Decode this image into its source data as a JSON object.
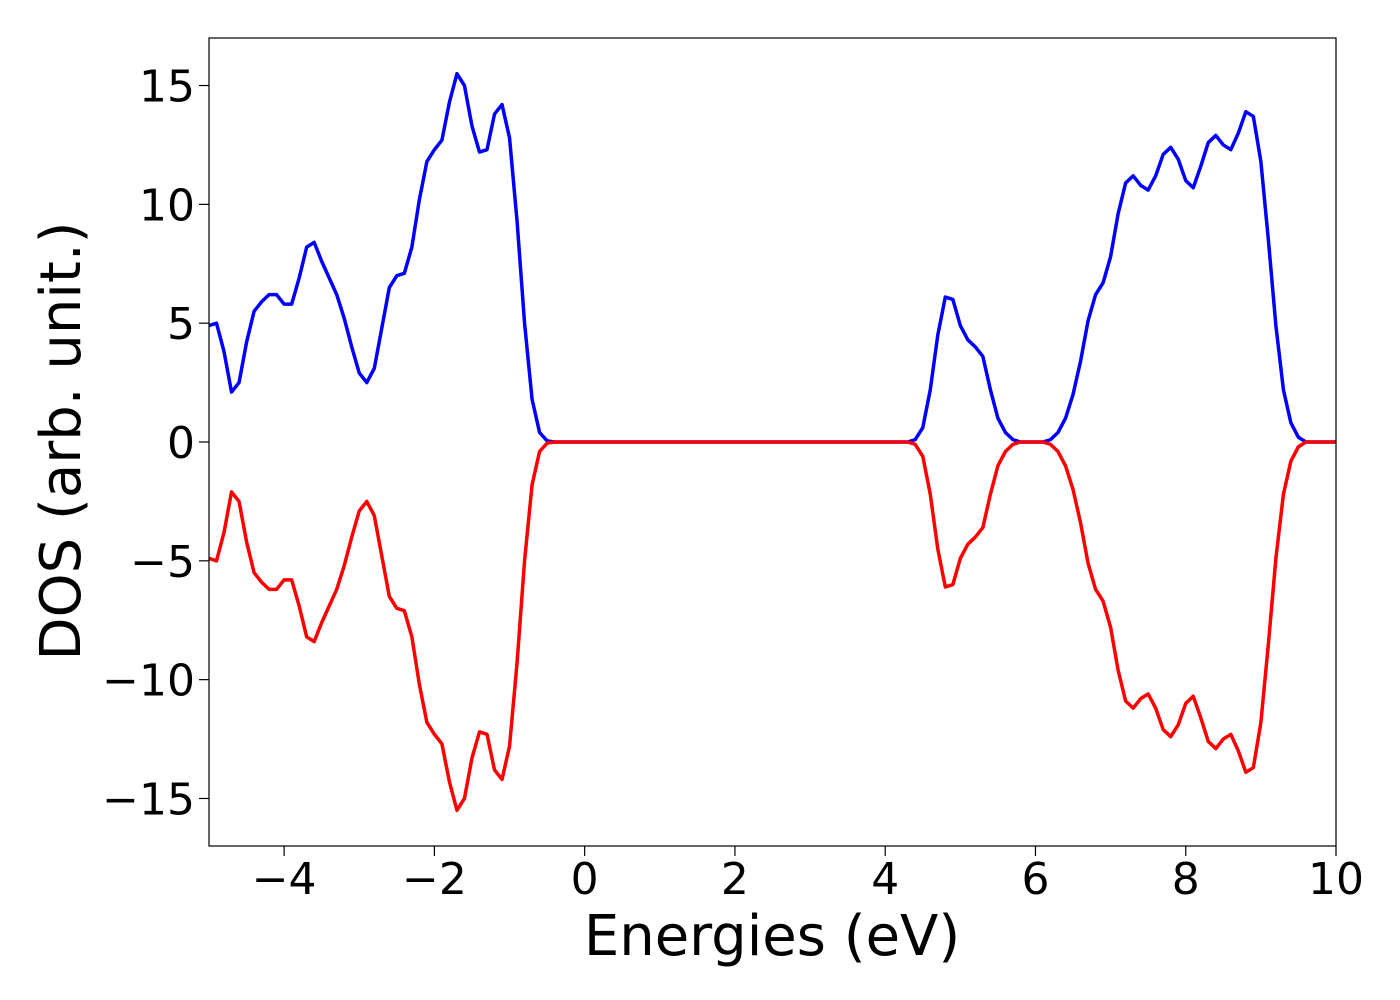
{
  "chart_data": {
    "type": "line",
    "xlabel": "Energies (eV)",
    "ylabel": "DOS (arb. unit.)",
    "xlim": [
      -5,
      10
    ],
    "ylim": [
      -17,
      17
    ],
    "xticks": [
      {
        "value": -4,
        "label": "−4"
      },
      {
        "value": -2,
        "label": "−2"
      },
      0,
      2,
      4,
      6,
      8,
      10
    ],
    "yticks": [
      {
        "value": -15,
        "label": "−15"
      },
      {
        "value": -10,
        "label": "−10"
      },
      {
        "value": -5,
        "label": "−5"
      },
      0,
      5,
      10,
      15
    ],
    "x": [
      -5,
      -4.9,
      -4.8,
      -4.7,
      -4.6,
      -4.5,
      -4.4,
      -4.3,
      -4.2,
      -4.1,
      -4,
      -3.9,
      -3.8,
      -3.7,
      -3.6,
      -3.5,
      -3.4,
      -3.3,
      -3.2,
      -3.1,
      -3,
      -2.9,
      -2.8,
      -2.7,
      -2.6,
      -2.5,
      -2.4,
      -2.3,
      -2.2,
      -2.1,
      -2,
      -1.9,
      -1.8,
      -1.7,
      -1.6,
      -1.5,
      -1.4,
      -1.3,
      -1.2,
      -1.1,
      -1,
      -0.9,
      -0.8,
      -0.7,
      -0.6,
      -0.5,
      -0.4,
      -0.3,
      -0.2,
      -0.1,
      0,
      0.1,
      0.2,
      0.3,
      0.4,
      0.5,
      0.6,
      0.7,
      0.8,
      0.9,
      1,
      1.1,
      1.2,
      1.3,
      1.4,
      1.5,
      1.6,
      1.7,
      1.8,
      1.9,
      2,
      2.1,
      2.2,
      2.3,
      2.4,
      2.5,
      2.6,
      2.7,
      2.8,
      2.9,
      3,
      3.1,
      3.2,
      3.3,
      3.4,
      3.5,
      3.6,
      3.7,
      3.8,
      3.9,
      4,
      4.1,
      4.2,
      4.3,
      4.4,
      4.5,
      4.6,
      4.7,
      4.8,
      4.9,
      5,
      5.1,
      5.2,
      5.3,
      5.4,
      5.5,
      5.6,
      5.7,
      5.8,
      5.9,
      6,
      6.1,
      6.2,
      6.3,
      6.4,
      6.5,
      6.6,
      6.7,
      6.8,
      6.9,
      7,
      7.1,
      7.2,
      7.3,
      7.4,
      7.5,
      7.6,
      7.7,
      7.8,
      7.9,
      8,
      8.1,
      8.2,
      8.3,
      8.4,
      8.5,
      8.6,
      8.7,
      8.8,
      8.9,
      9,
      9.1,
      9.2,
      9.3,
      9.4,
      9.5,
      9.6,
      9.7,
      9.8,
      9.9,
      10
    ],
    "series": [
      {
        "color": "#0000ff",
        "values": [
          4.9,
          5.0,
          3.8,
          2.1,
          2.5,
          4.2,
          5.5,
          5.9,
          6.2,
          6.2,
          5.8,
          5.8,
          6.9,
          8.2,
          8.4,
          7.6,
          6.9,
          6.2,
          5.2,
          4.0,
          2.9,
          2.5,
          3.1,
          4.8,
          6.5,
          7.0,
          7.1,
          8.2,
          10.2,
          11.8,
          12.3,
          12.7,
          14.3,
          15.5,
          15.0,
          13.3,
          12.2,
          12.3,
          13.8,
          14.2,
          12.8,
          9.3,
          5.0,
          1.8,
          0.4,
          0.05,
          0,
          0,
          0,
          0,
          0,
          0,
          0,
          0,
          0,
          0,
          0,
          0,
          0,
          0,
          0,
          0,
          0,
          0,
          0,
          0,
          0,
          0,
          0,
          0,
          0,
          0,
          0,
          0,
          0,
          0,
          0,
          0,
          0,
          0,
          0,
          0,
          0,
          0,
          0,
          0,
          0,
          0,
          0,
          0,
          0,
          0,
          0,
          0,
          0.1,
          0.6,
          2.2,
          4.5,
          6.1,
          6.0,
          4.9,
          4.3,
          4.0,
          3.6,
          2.2,
          1.0,
          0.4,
          0.1,
          0,
          0,
          0,
          0,
          0.1,
          0.4,
          1.0,
          2.0,
          3.4,
          5.1,
          6.2,
          6.7,
          7.8,
          9.6,
          10.9,
          11.2,
          10.8,
          10.6,
          11.2,
          12.1,
          12.4,
          11.9,
          11.0,
          10.7,
          11.6,
          12.6,
          12.9,
          12.5,
          12.3,
          13.0,
          13.9,
          13.7,
          11.8,
          8.5,
          4.9,
          2.2,
          0.8,
          0.2,
          0,
          0,
          0,
          0,
          0
        ]
      },
      {
        "color": "#ff0000",
        "values": [
          -4.9,
          -5.0,
          -3.8,
          -2.1,
          -2.5,
          -4.2,
          -5.5,
          -5.9,
          -6.2,
          -6.2,
          -5.8,
          -5.8,
          -6.9,
          -8.2,
          -8.4,
          -7.6,
          -6.9,
          -6.2,
          -5.2,
          -4.0,
          -2.9,
          -2.5,
          -3.1,
          -4.8,
          -6.5,
          -7.0,
          -7.1,
          -8.2,
          -10.2,
          -11.8,
          -12.3,
          -12.7,
          -14.3,
          -15.5,
          -15.0,
          -13.3,
          -12.2,
          -12.3,
          -13.8,
          -14.2,
          -12.8,
          -9.3,
          -5.0,
          -1.8,
          -0.4,
          -0.05,
          0,
          0,
          0,
          0,
          0,
          0,
          0,
          0,
          0,
          0,
          0,
          0,
          0,
          0,
          0,
          0,
          0,
          0,
          0,
          0,
          0,
          0,
          0,
          0,
          0,
          0,
          0,
          0,
          0,
          0,
          0,
          0,
          0,
          0,
          0,
          0,
          0,
          0,
          0,
          0,
          0,
          0,
          0,
          0,
          0,
          0,
          0,
          0,
          -0.1,
          -0.6,
          -2.2,
          -4.5,
          -6.1,
          -6.0,
          -4.9,
          -4.3,
          -4.0,
          -3.6,
          -2.2,
          -1.0,
          -0.4,
          -0.1,
          0,
          0,
          0,
          0,
          -0.1,
          -0.4,
          -1.0,
          -2.0,
          -3.4,
          -5.1,
          -6.2,
          -6.7,
          -7.8,
          -9.6,
          -10.9,
          -11.2,
          -10.8,
          -10.6,
          -11.2,
          -12.1,
          -12.4,
          -11.9,
          -11.0,
          -10.7,
          -11.6,
          -12.6,
          -12.9,
          -12.5,
          -12.3,
          -13.0,
          -13.9,
          -13.7,
          -11.8,
          -8.5,
          -4.9,
          -2.2,
          -0.8,
          -0.2,
          0,
          0,
          0,
          0,
          0
        ]
      }
    ]
  }
}
